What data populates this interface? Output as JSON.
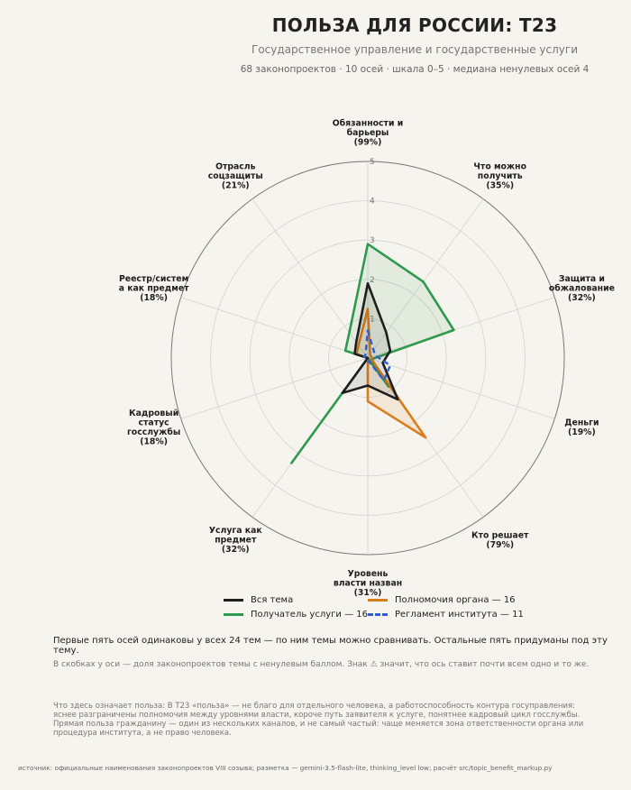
{
  "header": {
    "title": "ПОЛЬЗА ДЛЯ РОССИИ: Т23",
    "subtitle": "Государственное управление и государственные услуги",
    "meta": "68 законопроектов · 10 осей · шкала 0–5 · медиана ненулевых осей 4"
  },
  "chart_data": {
    "type": "radar",
    "scale": [
      0,
      5
    ],
    "ticks": [
      "1",
      "2",
      "3",
      "4",
      "5"
    ],
    "axes": [
      {
        "lines": [
          "Обязанности и",
          "барьеры",
          "(99%)"
        ]
      },
      {
        "lines": [
          "Что можно",
          "получить",
          "(35%)"
        ]
      },
      {
        "lines": [
          "Защита и",
          "обжалование",
          "(32%)"
        ]
      },
      {
        "lines": [
          "Деньги",
          "(19%)"
        ]
      },
      {
        "lines": [
          "Кто решает",
          "(79%)"
        ]
      },
      {
        "lines": [
          "Уровень",
          "власти назван",
          "(31%)"
        ]
      },
      {
        "lines": [
          "Услуга как",
          "предмет",
          "(32%)"
        ]
      },
      {
        "lines": [
          "Кадровый",
          "статус",
          "госслужбы",
          "(18%)"
        ]
      },
      {
        "lines": [
          "Реестр/систем",
          "а как предмет",
          "(18%)"
        ]
      },
      {
        "lines": [
          "Отрасль",
          "соцзащиты",
          "(21%)"
        ]
      }
    ],
    "series": [
      {
        "name": "Получатель услуги — 16",
        "color": "#2e9a4e",
        "dash": false,
        "fill": true,
        "values": [
          2.9,
          2.4,
          2.3,
          0.1,
          0.9,
          0.0,
          3.3,
          0.0,
          0.6,
          0.8
        ]
      },
      {
        "name": "Полномочия органа — 16",
        "color": "#d97d1f",
        "dash": false,
        "fill": true,
        "values": [
          1.25,
          0.1,
          0.1,
          0.1,
          2.5,
          1.1,
          0.0,
          0.0,
          0.3,
          0.4
        ]
      },
      {
        "name": "Вся тема",
        "color": "#1e1e1e",
        "dash": false,
        "fill": true,
        "values": [
          1.9,
          0.8,
          0.6,
          0.4,
          1.3,
          0.7,
          1.1,
          0.0,
          0.35,
          0.5
        ]
      },
      {
        "name": "Регламент института — 11",
        "color": "#2f5fcf",
        "dash": true,
        "fill": false,
        "values": [
          0.7,
          0.25,
          0.2,
          0.6,
          0.7,
          0.05,
          0.0,
          0.0,
          0.1,
          0.1
        ]
      }
    ]
  },
  "legend": [
    {
      "label": "Вся тема",
      "color": "#1e1e1e",
      "dash": false
    },
    {
      "label": "Полномочия органа — 16",
      "color": "#d97d1f",
      "dash": false
    },
    {
      "label": "Получатель услуги — 16",
      "color": "#2e9a4e",
      "dash": false
    },
    {
      "label": "Регламент института — 11",
      "color": "#2f5fcf",
      "dash": true
    }
  ],
  "notes": {
    "first": "Первые пять осей одинаковы у всех 24 тем — по ним темы можно сравнивать. Остальные пять придуманы под эту тему.",
    "second": "В скобках у оси — доля законопроектов темы с ненулевым баллом. Знак ⚠ значит, что ось ставит почти всем одно и то же.",
    "third": "Что здесь означает польза: В Т23 «польза» — не благо для отдельного человека, а работоспособность контура госуправления: яснее разграничены полномочия между уровнями власти, короче путь заявителя к услуге, понятнее кадровый цикл госслужбы. Прямая польза гражданину — один из нескольких каналов, и не самый частый: чаще меняется зона ответственности органа или процедура института, а не право человека.",
    "source": "источник: официальные наименования законопроектов VIII созыва; разметка — gemini-3.5-flash-lite, thinking_level low; расчёт src/topic_benefit_markup.py"
  }
}
